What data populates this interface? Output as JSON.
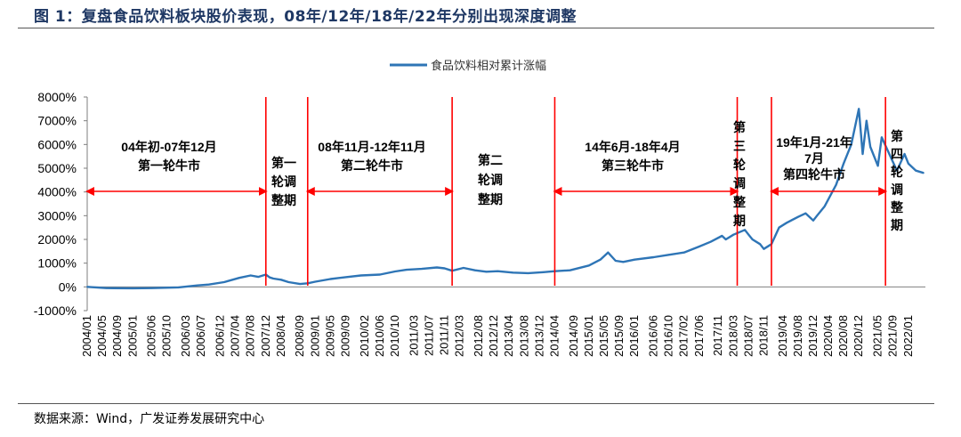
{
  "figure_title": "图 1：复盘食品饮料板块股价表现，08年/12年/18年/22年分别出现深度调整",
  "source_note": "数据来源：Wind，广发证券发展研究中心",
  "chart_data": {
    "type": "line",
    "title": "",
    "xlabel": "",
    "ylabel": "",
    "ylim": [
      -1000,
      8000
    ],
    "yticks": [
      "-1000%",
      "0%",
      "1000%",
      "2000%",
      "3000%",
      "4000%",
      "5000%",
      "6000%",
      "7000%",
      "8000%"
    ],
    "xticks": [
      "2004/01",
      "2004/05",
      "2004/09",
      "2005/01",
      "2005/06",
      "2005/10",
      "2006/03",
      "2006/07",
      "2006/12",
      "2007/04",
      "2007/08",
      "2007/12",
      "2008/04",
      "2008/09",
      "2009/01",
      "2009/05",
      "2009/09",
      "2010/02",
      "2010/06",
      "2010/10",
      "2011/03",
      "2011/07",
      "2011/11",
      "2012/03",
      "2012/08",
      "2012/12",
      "2013/04",
      "2013/08",
      "2013/12",
      "2014/04",
      "2014/09",
      "2015/01",
      "2015/05",
      "2015/09",
      "2016/01",
      "2016/06",
      "2016/10",
      "2017/02",
      "2017/06",
      "2017/11",
      "2018/03",
      "2018/07",
      "2018/11",
      "2019/04",
      "2019/08",
      "2019/12",
      "2020/04",
      "2020/08",
      "2020/12",
      "2021/05",
      "2021/09",
      "2022/01"
    ],
    "legend": {
      "position": "top-center",
      "series_color": "#2e75b6"
    },
    "series": [
      {
        "name": "食品饮料相对累计涨幅",
        "x": [
          "2004/01",
          "2004/06",
          "2005/01",
          "2005/06",
          "2006/01",
          "2006/06",
          "2006/09",
          "2007/01",
          "2007/05",
          "2007/08",
          "2007/10",
          "2007/12",
          "2008/01",
          "2008/02",
          "2008/04",
          "2008/06",
          "2008/09",
          "2008/11",
          "2009/01",
          "2009/05",
          "2009/09",
          "2010/01",
          "2010/06",
          "2010/10",
          "2011/01",
          "2011/05",
          "2011/09",
          "2011/11",
          "2012/01",
          "2012/04",
          "2012/07",
          "2012/10",
          "2013/01",
          "2013/05",
          "2013/09",
          "2014/01",
          "2014/04",
          "2014/08",
          "2015/01",
          "2015/04",
          "2015/06",
          "2015/08",
          "2015/10",
          "2016/01",
          "2016/06",
          "2016/10",
          "2017/02",
          "2017/06",
          "2017/09",
          "2017/12",
          "2018/01",
          "2018/03",
          "2018/06",
          "2018/07",
          "2018/08",
          "2018/10",
          "2018/11",
          "2019/01",
          "2019/03",
          "2019/05",
          "2019/08",
          "2019/10",
          "2019/12",
          "2020/01",
          "2020/03",
          "2020/06",
          "2020/08",
          "2020/10",
          "2020/12",
          "2021/01",
          "2021/02",
          "2021/03",
          "2021/05",
          "2021/06",
          "2021/08",
          "2021/10",
          "2021/12",
          "2022/01",
          "2022/03",
          "2022/05"
        ],
        "values": [
          0,
          -50,
          -60,
          -50,
          -20,
          60,
          100,
          200,
          380,
          480,
          420,
          520,
          400,
          350,
          300,
          200,
          120,
          150,
          220,
          330,
          410,
          480,
          520,
          650,
          720,
          760,
          820,
          780,
          680,
          800,
          700,
          640,
          660,
          600,
          580,
          620,
          660,
          700,
          900,
          1150,
          1450,
          1100,
          1050,
          1150,
          1250,
          1350,
          1450,
          1700,
          1900,
          2150,
          2000,
          2200,
          2400,
          2200,
          2000,
          1800,
          1600,
          1800,
          2500,
          2700,
          2950,
          3100,
          2800,
          3000,
          3400,
          4300,
          5200,
          6000,
          7500,
          5600,
          7000,
          5900,
          5100,
          6300,
          5600,
          4900,
          5600,
          5200,
          4900,
          4800
        ]
      }
    ],
    "annotations": [
      {
        "text": [
          "04年初-07年12月",
          "第一轮牛市"
        ]
      },
      {
        "text": [
          "第一",
          "轮调",
          "整期"
        ]
      },
      {
        "text": [
          "08年11月-12年11月",
          "第二轮牛市"
        ]
      },
      {
        "text": [
          "第二",
          "轮调",
          "整期"
        ]
      },
      {
        "text": [
          "14年6月-18年4月",
          "第三轮牛市"
        ]
      },
      {
        "text": [
          "第",
          "三",
          "轮",
          "调",
          "整",
          "期"
        ]
      },
      {
        "text": [
          "19年1月-21年",
          "7月",
          "第四轮牛市"
        ]
      },
      {
        "text": [
          "第",
          "四",
          "轮",
          "调",
          "整",
          "期"
        ]
      }
    ],
    "dividers": [
      "2007/12",
      "2008/11",
      "2012/01",
      "2014/04",
      "2018/04",
      "2019/01",
      "2021/07"
    ],
    "arrows": [
      {
        "from": "2004/01",
        "to": "2007/12"
      },
      {
        "from": "2008/11",
        "to": "2012/01"
      },
      {
        "from": "2014/04",
        "to": "2018/04"
      },
      {
        "from": "2019/01",
        "to": "2021/07"
      }
    ]
  }
}
